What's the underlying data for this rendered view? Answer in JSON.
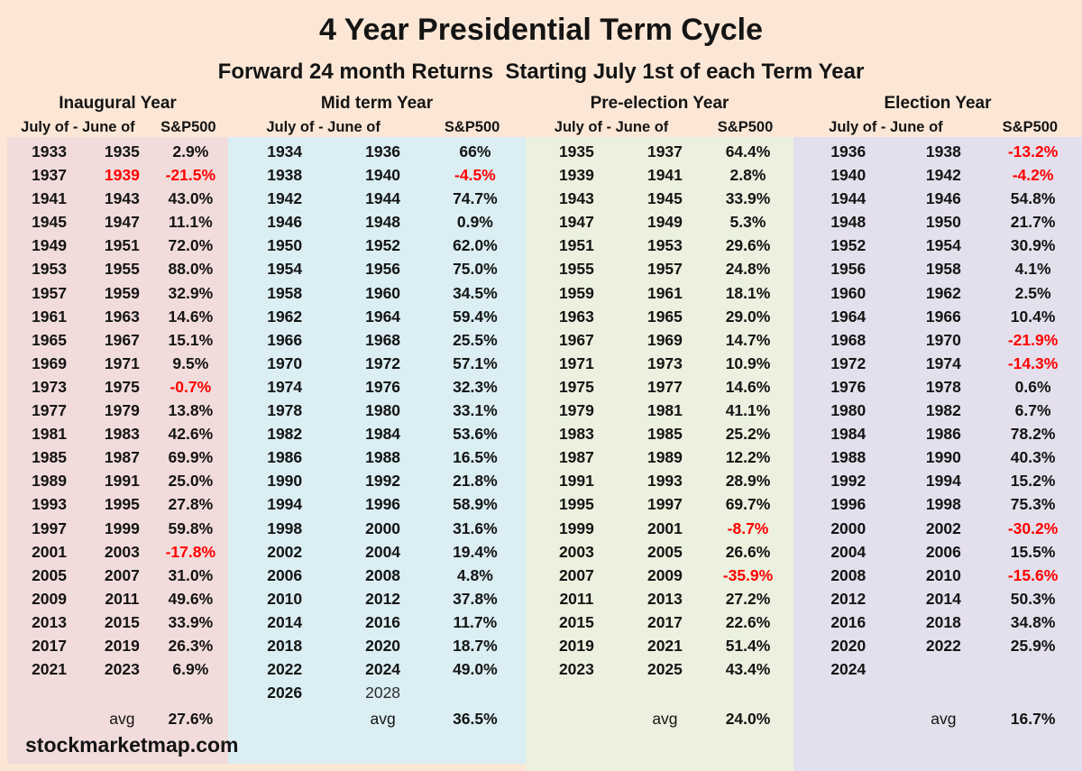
{
  "colors": {
    "background": "#fce7d6",
    "text": "#141414",
    "negative": "#ff0000",
    "inaugural_band": "#f2dcdb",
    "midterm_band": "#daeef3",
    "preelection_band": "#ebf1de",
    "election_band": "#e4dfec"
  },
  "footer": {
    "site": "stockmarketmap.com"
  },
  "labels": {
    "avg": "avg"
  },
  "chart_data": {
    "type": "table",
    "title": "4 Year Presidential Term Cycle",
    "subtitle": "Forward 24 month Returns  Starting July 1st of each Term Year",
    "column_headers": {
      "years": "July of - June of",
      "index": "S&P500"
    },
    "groups": [
      {
        "name": "Inaugural Year",
        "band_color": "#f2dcdb",
        "avg": "27.6%",
        "rows": [
          {
            "start": "1933",
            "end": "1935",
            "ret": "2.9%"
          },
          {
            "start": "1937",
            "end": "1939",
            "ret": "-21.5%",
            "negative": true,
            "end_red": true
          },
          {
            "start": "1941",
            "end": "1943",
            "ret": "43.0%"
          },
          {
            "start": "1945",
            "end": "1947",
            "ret": "11.1%"
          },
          {
            "start": "1949",
            "end": "1951",
            "ret": "72.0%"
          },
          {
            "start": "1953",
            "end": "1955",
            "ret": "88.0%"
          },
          {
            "start": "1957",
            "end": "1959",
            "ret": "32.9%"
          },
          {
            "start": "1961",
            "end": "1963",
            "ret": "14.6%"
          },
          {
            "start": "1965",
            "end": "1967",
            "ret": "15.1%"
          },
          {
            "start": "1969",
            "end": "1971",
            "ret": "9.5%"
          },
          {
            "start": "1973",
            "end": "1975",
            "ret": "-0.7%",
            "negative": true
          },
          {
            "start": "1977",
            "end": "1979",
            "ret": "13.8%"
          },
          {
            "start": "1981",
            "end": "1983",
            "ret": "42.6%"
          },
          {
            "start": "1985",
            "end": "1987",
            "ret": "69.9%"
          },
          {
            "start": "1989",
            "end": "1991",
            "ret": "25.0%"
          },
          {
            "start": "1993",
            "end": "1995",
            "ret": "27.8%"
          },
          {
            "start": "1997",
            "end": "1999",
            "ret": "59.8%"
          },
          {
            "start": "2001",
            "end": "2003",
            "ret": "-17.8%",
            "negative": true
          },
          {
            "start": "2005",
            "end": "2007",
            "ret": "31.0%"
          },
          {
            "start": "2009",
            "end": "2011",
            "ret": "49.6%"
          },
          {
            "start": "2013",
            "end": "2015",
            "ret": "33.9%"
          },
          {
            "start": "2017",
            "end": "2019",
            "ret": "26.3%"
          },
          {
            "start": "2021",
            "end": "2023",
            "ret": "6.9%"
          }
        ]
      },
      {
        "name": "Mid term Year",
        "band_color": "#daeef3",
        "avg": "36.5%",
        "rows": [
          {
            "start": "1934",
            "end": "1936",
            "ret": "66%"
          },
          {
            "start": "1938",
            "end": "1940",
            "ret": "-4.5%",
            "negative": true
          },
          {
            "start": "1942",
            "end": "1944",
            "ret": "74.7%"
          },
          {
            "start": "1946",
            "end": "1948",
            "ret": "0.9%"
          },
          {
            "start": "1950",
            "end": "1952",
            "ret": "62.0%"
          },
          {
            "start": "1954",
            "end": "1956",
            "ret": "75.0%"
          },
          {
            "start": "1958",
            "end": "1960",
            "ret": "34.5%"
          },
          {
            "start": "1962",
            "end": "1964",
            "ret": "59.4%"
          },
          {
            "start": "1966",
            "end": "1968",
            "ret": "25.5%"
          },
          {
            "start": "1970",
            "end": "1972",
            "ret": "57.1%"
          },
          {
            "start": "1974",
            "end": "1976",
            "ret": "32.3%"
          },
          {
            "start": "1978",
            "end": "1980",
            "ret": "33.1%"
          },
          {
            "start": "1982",
            "end": "1984",
            "ret": "53.6%"
          },
          {
            "start": "1986",
            "end": "1988",
            "ret": "16.5%"
          },
          {
            "start": "1990",
            "end": "1992",
            "ret": "21.8%"
          },
          {
            "start": "1994",
            "end": "1996",
            "ret": "58.9%"
          },
          {
            "start": "1998",
            "end": "2000",
            "ret": "31.6%"
          },
          {
            "start": "2002",
            "end": "2004",
            "ret": "19.4%"
          },
          {
            "start": "2006",
            "end": "2008",
            "ret": "4.8%"
          },
          {
            "start": "2010",
            "end": "2012",
            "ret": "37.8%"
          },
          {
            "start": "2014",
            "end": "2016",
            "ret": "11.7%"
          },
          {
            "start": "2018",
            "end": "2020",
            "ret": "18.7%"
          },
          {
            "start": "2022",
            "end": "2024",
            "ret": "49.0%"
          },
          {
            "start": "2026",
            "end": "2028",
            "ret": "",
            "end_light": true
          }
        ]
      },
      {
        "name": "Pre-election Year",
        "band_color": "#ebf1de",
        "avg": "24.0%",
        "rows": [
          {
            "start": "1935",
            "end": "1937",
            "ret": "64.4%"
          },
          {
            "start": "1939",
            "end": "1941",
            "ret": "2.8%"
          },
          {
            "start": "1943",
            "end": "1945",
            "ret": "33.9%"
          },
          {
            "start": "1947",
            "end": "1949",
            "ret": "5.3%"
          },
          {
            "start": "1951",
            "end": "1953",
            "ret": "29.6%"
          },
          {
            "start": "1955",
            "end": "1957",
            "ret": "24.8%"
          },
          {
            "start": "1959",
            "end": "1961",
            "ret": "18.1%"
          },
          {
            "start": "1963",
            "end": "1965",
            "ret": "29.0%"
          },
          {
            "start": "1967",
            "end": "1969",
            "ret": "14.7%"
          },
          {
            "start": "1971",
            "end": "1973",
            "ret": "10.9%"
          },
          {
            "start": "1975",
            "end": "1977",
            "ret": "14.6%"
          },
          {
            "start": "1979",
            "end": "1981",
            "ret": "41.1%"
          },
          {
            "start": "1983",
            "end": "1985",
            "ret": "25.2%"
          },
          {
            "start": "1987",
            "end": "1989",
            "ret": "12.2%"
          },
          {
            "start": "1991",
            "end": "1993",
            "ret": "28.9%"
          },
          {
            "start": "1995",
            "end": "1997",
            "ret": "69.7%"
          },
          {
            "start": "1999",
            "end": "2001",
            "ret": "-8.7%",
            "negative": true
          },
          {
            "start": "2003",
            "end": "2005",
            "ret": "26.6%"
          },
          {
            "start": "2007",
            "end": "2009",
            "ret": "-35.9%",
            "negative": true
          },
          {
            "start": "2011",
            "end": "2013",
            "ret": "27.2%"
          },
          {
            "start": "2015",
            "end": "2017",
            "ret": "22.6%"
          },
          {
            "start": "2019",
            "end": "2021",
            "ret": "51.4%"
          },
          {
            "start": "2023",
            "end": "2025",
            "ret": "43.4%"
          }
        ]
      },
      {
        "name": "Election Year",
        "band_color": "#e4dfec",
        "avg": "16.7%",
        "rows": [
          {
            "start": "1936",
            "end": "1938",
            "ret": "-13.2%",
            "negative": true
          },
          {
            "start": "1940",
            "end": "1942",
            "ret": "-4.2%",
            "negative": true
          },
          {
            "start": "1944",
            "end": "1946",
            "ret": "54.8%"
          },
          {
            "start": "1948",
            "end": "1950",
            "ret": "21.7%"
          },
          {
            "start": "1952",
            "end": "1954",
            "ret": "30.9%"
          },
          {
            "start": "1956",
            "end": "1958",
            "ret": "4.1%"
          },
          {
            "start": "1960",
            "end": "1962",
            "ret": "2.5%"
          },
          {
            "start": "1964",
            "end": "1966",
            "ret": "10.4%"
          },
          {
            "start": "1968",
            "end": "1970",
            "ret": "-21.9%",
            "negative": true
          },
          {
            "start": "1972",
            "end": "1974",
            "ret": "-14.3%",
            "negative": true
          },
          {
            "start": "1976",
            "end": "1978",
            "ret": "0.6%"
          },
          {
            "start": "1980",
            "end": "1982",
            "ret": "6.7%"
          },
          {
            "start": "1984",
            "end": "1986",
            "ret": "78.2%"
          },
          {
            "start": "1988",
            "end": "1990",
            "ret": "40.3%"
          },
          {
            "start": "1992",
            "end": "1994",
            "ret": "15.2%"
          },
          {
            "start": "1996",
            "end": "1998",
            "ret": "75.3%"
          },
          {
            "start": "2000",
            "end": "2002",
            "ret": "-30.2%",
            "negative": true
          },
          {
            "start": "2004",
            "end": "2006",
            "ret": "15.5%"
          },
          {
            "start": "2008",
            "end": "2010",
            "ret": "-15.6%",
            "negative": true
          },
          {
            "start": "2012",
            "end": "2014",
            "ret": "50.3%"
          },
          {
            "start": "2016",
            "end": "2018",
            "ret": "34.8%"
          },
          {
            "start": "2020",
            "end": "2022",
            "ret": "25.9%"
          },
          {
            "start": "2024",
            "end": "",
            "ret": ""
          }
        ]
      }
    ]
  }
}
